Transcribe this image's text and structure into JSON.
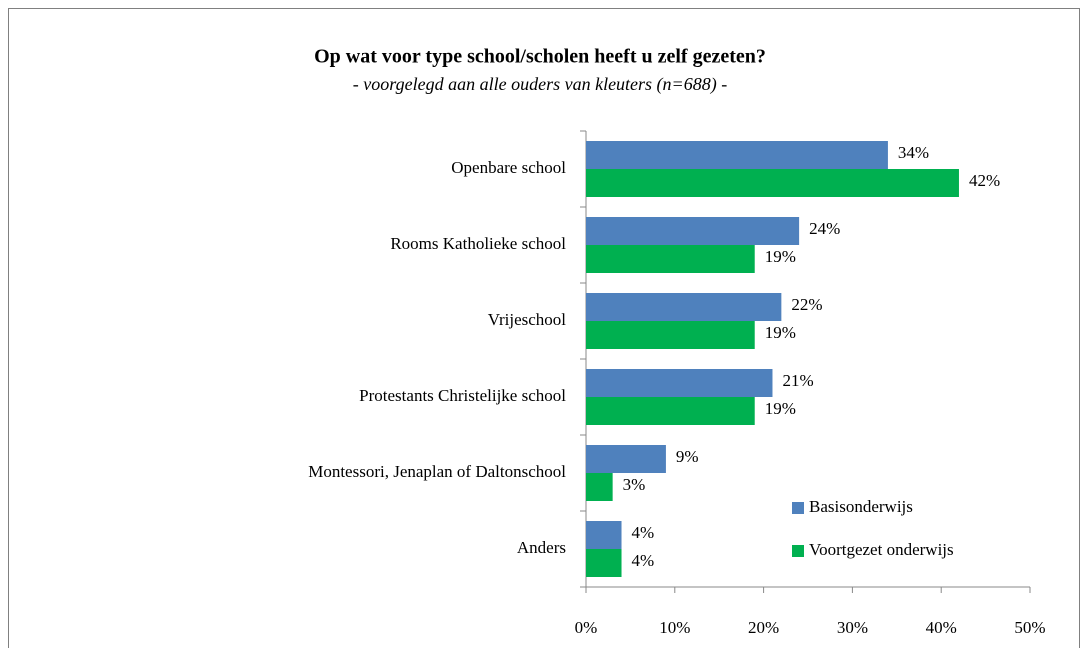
{
  "chart_data": {
    "type": "bar",
    "orientation": "horizontal",
    "title": "Op wat voor type school/scholen heeft u zelf gezeten?",
    "subtitle": "- voorgelegd aan alle ouders van kleuters (n=688) -",
    "categories": [
      "Openbare school",
      "Rooms Katholieke school",
      "Vrijeschool",
      "Protestants Christelijke school",
      "Montessori, Jenaplan of Daltonschool",
      "Anders"
    ],
    "series": [
      {
        "name": "Basisonderwijs",
        "color": "#4f81bd",
        "values": [
          34,
          24,
          22,
          21,
          9,
          4
        ],
        "value_labels": [
          "34%",
          "24%",
          "22%",
          "21%",
          "9%",
          "4%"
        ]
      },
      {
        "name": "Voortgezet onderwijs",
        "color": "#00b050",
        "values": [
          42,
          19,
          19,
          19,
          3,
          4
        ],
        "value_labels": [
          "42%",
          "19%",
          "19%",
          "19%",
          "3%",
          "4%"
        ]
      }
    ],
    "xlim": [
      0,
      50
    ],
    "xticks": [
      {
        "value": 0,
        "label": "0%"
      },
      {
        "value": 10,
        "label": "10%"
      },
      {
        "value": 20,
        "label": "20%"
      },
      {
        "value": 30,
        "label": "30%"
      },
      {
        "value": 40,
        "label": "40%"
      },
      {
        "value": 50,
        "label": "50%"
      }
    ],
    "legend": "lower right"
  }
}
